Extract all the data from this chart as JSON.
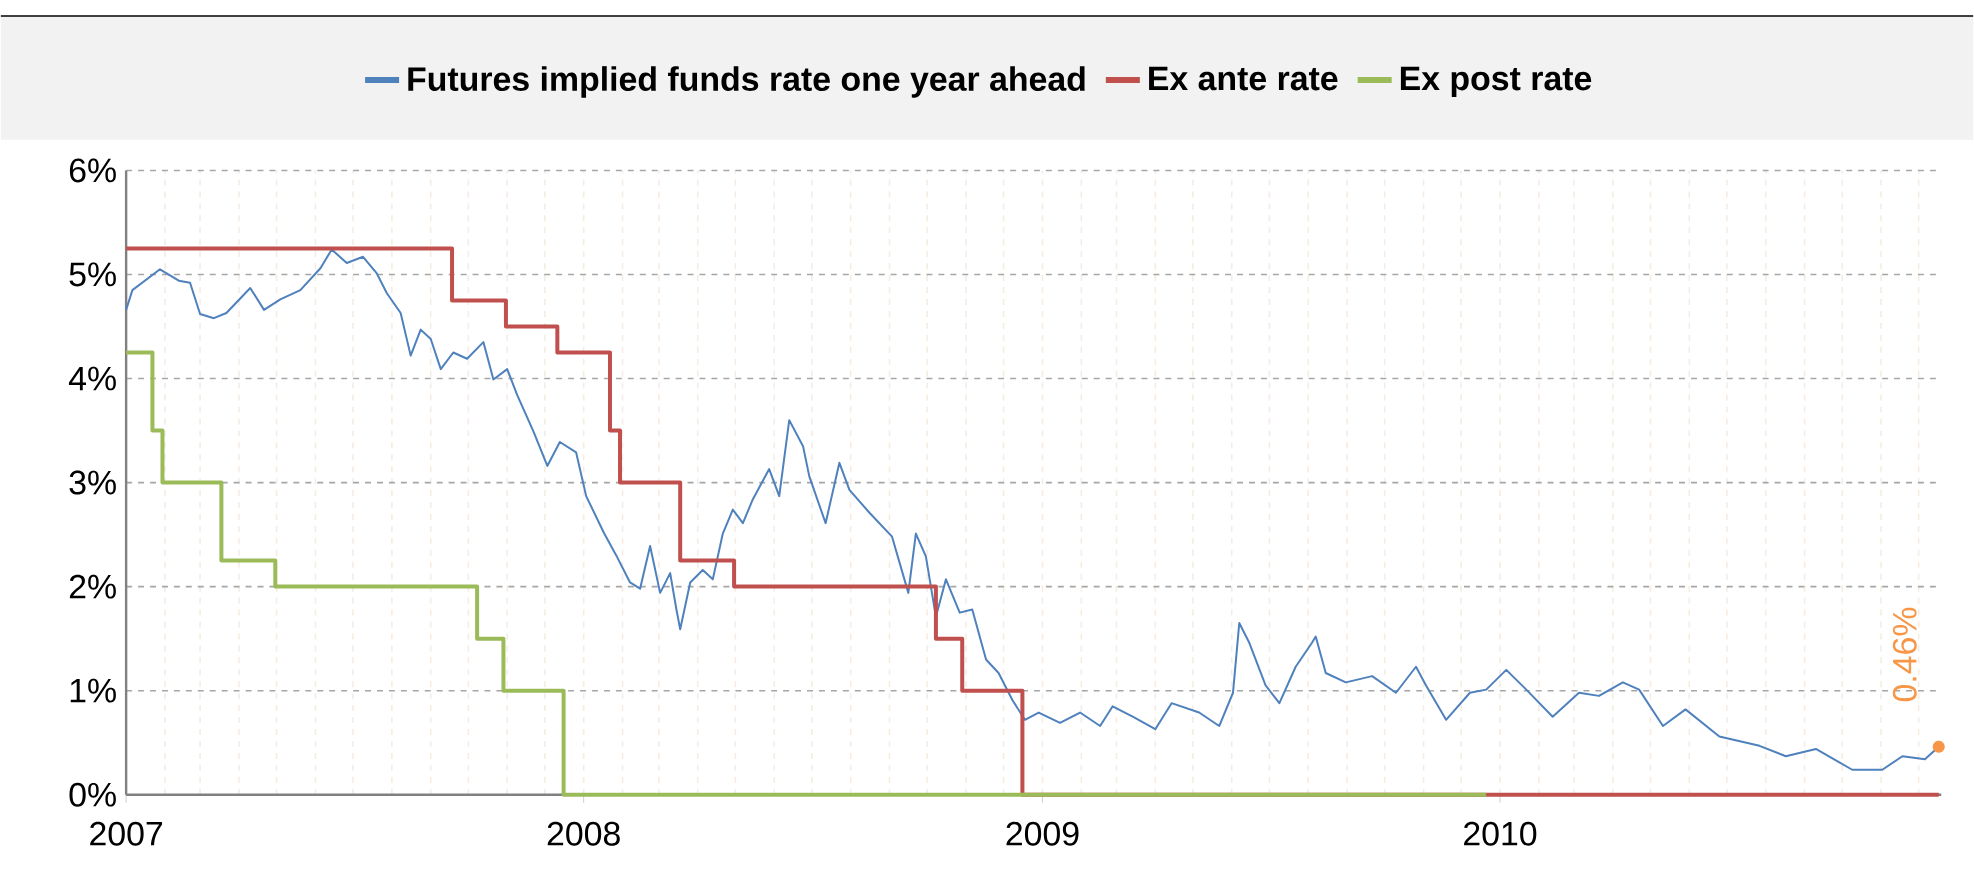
{
  "chart_data": {
    "type": "line",
    "xlim": [
      "2007-01-01",
      "2010-12-19"
    ],
    "xticks": [
      "2007",
      "2008",
      "2009",
      "2010"
    ],
    "ylim": [
      0,
      6
    ],
    "yticks": [
      {
        "value": 0,
        "label": "0%"
      },
      {
        "value": 1,
        "label": "1%"
      },
      {
        "value": 2,
        "label": "2%"
      },
      {
        "value": 3,
        "label": "3%"
      },
      {
        "value": 4,
        "label": "4%"
      },
      {
        "value": 5,
        "label": "5%"
      },
      {
        "value": 6,
        "label": "6%"
      }
    ],
    "grid": true,
    "legend": "top",
    "series": [
      {
        "name": "Futures implied funds rate one year ahead",
        "color": "#4f81bd",
        "x": [
          "2007-01-01",
          "2007-01-06",
          "2007-01-28",
          "2007-02-12",
          "2007-02-21",
          "2007-03-01",
          "2007-03-12",
          "2007-03-22",
          "2007-04-10",
          "2007-04-21",
          "2007-05-04",
          "2007-05-20",
          "2007-06-05",
          "2007-06-14",
          "2007-06-26",
          "2007-07-09",
          "2007-07-20",
          "2007-07-28",
          "2007-08-08",
          "2007-08-16",
          "2007-08-24",
          "2007-09-01",
          "2007-09-09",
          "2007-09-19",
          "2007-09-30",
          "2007-10-13",
          "2007-10-21",
          "2007-11-01",
          "2007-11-09",
          "2007-11-22",
          "2007-12-03",
          "2007-12-13",
          "2007-12-26",
          "2008-01-03",
          "2008-01-17",
          "2008-01-27",
          "2008-02-07",
          "2008-02-15",
          "2008-02-23",
          "2008-03-02",
          "2008-03-10",
          "2008-03-15",
          "2008-03-18",
          "2008-03-26",
          "2008-04-05",
          "2008-04-13",
          "2008-04-21",
          "2008-04-29",
          "2008-05-07",
          "2008-05-15",
          "2008-05-28",
          "2008-06-05",
          "2008-06-13",
          "2008-06-24",
          "2008-06-29",
          "2008-07-12",
          "2008-07-23",
          "2008-07-31",
          "2008-08-16",
          "2008-09-03",
          "2008-09-16",
          "2008-09-22",
          "2008-09-30",
          "2008-10-08",
          "2008-10-16",
          "2008-10-27",
          "2008-11-06",
          "2008-11-17",
          "2008-11-27",
          "2008-12-08",
          "2008-12-18",
          "2008-12-29",
          "2009-01-15",
          "2009-01-31",
          "2009-02-16",
          "2009-02-26",
          "2009-03-14",
          "2009-04-01",
          "2009-04-14",
          "2009-05-06",
          "2009-05-22",
          "2009-06-02",
          "2009-06-07",
          "2009-06-15",
          "2009-06-28",
          "2009-07-09",
          "2009-07-22",
          "2009-08-04",
          "2009-08-07",
          "2009-08-15",
          "2009-08-31",
          "2009-09-21",
          "2009-10-10",
          "2009-10-26",
          "2009-11-03",
          "2009-11-19",
          "2009-12-08",
          "2009-12-21",
          "2010-01-06",
          "2010-01-22",
          "2010-02-12",
          "2010-03-05",
          "2010-03-21",
          "2010-04-09",
          "2010-04-22",
          "2010-05-11",
          "2010-05-29",
          "2010-06-25",
          "2010-07-27",
          "2010-08-17",
          "2010-09-10",
          "2010-10-09",
          "2010-11-02",
          "2010-11-18",
          "2010-12-06",
          "2010-12-17"
        ],
        "values": [
          4.66,
          4.85,
          5.05,
          4.94,
          4.92,
          4.62,
          4.58,
          4.63,
          4.87,
          4.66,
          4.76,
          4.85,
          5.06,
          5.24,
          5.11,
          5.17,
          5.01,
          4.82,
          4.63,
          4.22,
          4.47,
          4.38,
          4.09,
          4.25,
          4.19,
          4.35,
          3.99,
          4.09,
          3.84,
          3.49,
          3.16,
          3.39,
          3.29,
          2.87,
          2.52,
          2.3,
          2.04,
          1.98,
          2.39,
          1.94,
          2.13,
          1.78,
          1.59,
          2.04,
          2.16,
          2.07,
          2.51,
          2.74,
          2.61,
          2.84,
          3.13,
          2.87,
          3.6,
          3.35,
          3.06,
          2.61,
          3.19,
          2.93,
          2.71,
          2.48,
          1.94,
          2.51,
          2.29,
          1.71,
          2.07,
          1.75,
          1.78,
          1.3,
          1.17,
          0.91,
          0.72,
          0.79,
          0.69,
          0.79,
          0.66,
          0.85,
          0.75,
          0.63,
          0.88,
          0.79,
          0.66,
          0.98,
          1.65,
          1.46,
          1.05,
          0.88,
          1.23,
          1.46,
          1.52,
          1.17,
          1.08,
          1.14,
          0.98,
          1.23,
          1.05,
          0.72,
          0.98,
          1.01,
          1.2,
          1.01,
          0.75,
          0.98,
          0.95,
          1.08,
          1.01,
          0.66,
          0.82,
          0.56,
          0.47,
          0.37,
          0.44,
          0.24,
          0.24,
          0.37,
          0.34,
          0.46
        ]
      },
      {
        "name": "Ex ante rate",
        "type": "step",
        "color": "#c0504d",
        "x": [
          "2007-01-01",
          "2007-09-18",
          "2007-10-31",
          "2007-12-11",
          "2008-01-22",
          "2008-01-30",
          "2008-03-18",
          "2008-04-30",
          "2008-10-08",
          "2008-10-29",
          "2008-12-16",
          "2010-12-17"
        ],
        "values": [
          5.25,
          4.75,
          4.5,
          4.25,
          3.5,
          3.0,
          2.25,
          2.0,
          1.5,
          1.0,
          0,
          0
        ]
      },
      {
        "name": "Ex post rate",
        "type": "step",
        "color": "#9bbb59",
        "x": [
          "2007-01-01",
          "2007-01-22",
          "2007-01-30",
          "2007-03-18",
          "2007-04-30",
          "2007-10-08",
          "2007-10-29",
          "2007-12-16",
          "2009-12-21"
        ],
        "values": [
          4.25,
          3.5,
          3.0,
          2.25,
          2.0,
          1.5,
          1.0,
          0,
          0
        ]
      }
    ],
    "annotations": [
      {
        "text": "0.46%",
        "x": "2010-12-17",
        "y": 0.46
      }
    ]
  }
}
